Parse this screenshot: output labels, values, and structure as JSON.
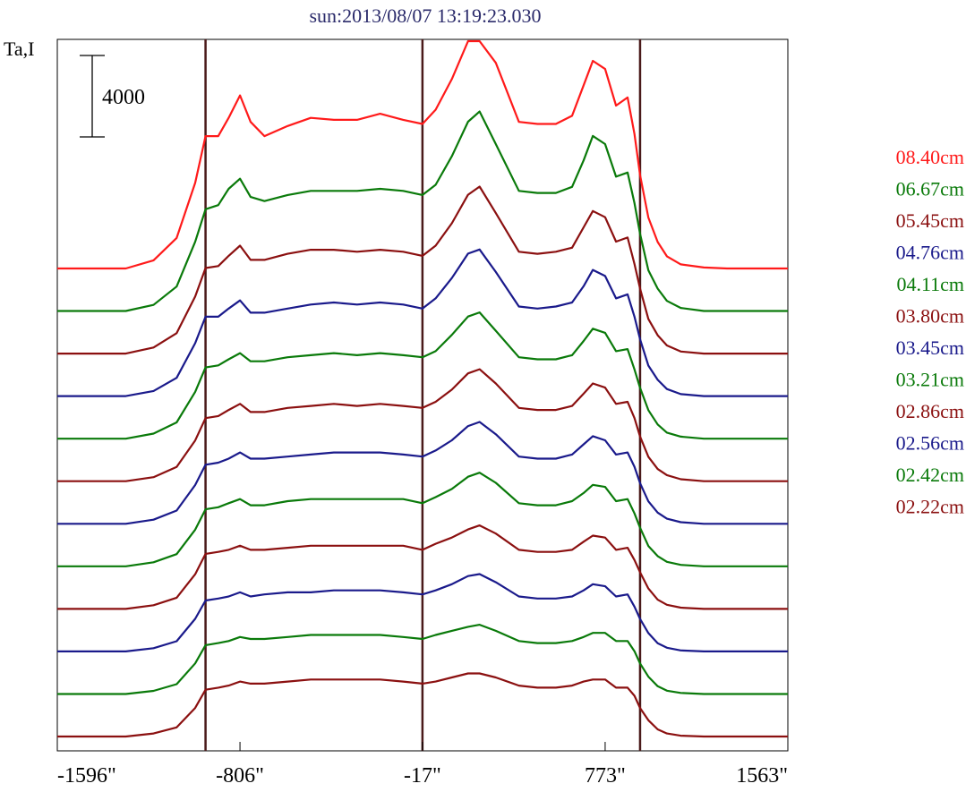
{
  "chart_data": {
    "type": "line",
    "title": "sun:2013/08/07 13:19:23.030",
    "ylabel": "Ta,I",
    "scale_bar_label": "4000",
    "scale_bar_value": 4000,
    "xlim": [
      -1596,
      1563
    ],
    "x_ticks": [
      {
        "value": -1596,
        "label": "-1596\""
      },
      {
        "value": -806,
        "label": "-806\""
      },
      {
        "value": -17,
        "label": "-17\""
      },
      {
        "value": 773,
        "label": "773\""
      },
      {
        "value": 1563,
        "label": "1563\""
      }
    ],
    "vertical_lines": [
      -955,
      -17,
      924
    ],
    "grid": false,
    "legend_position": "right",
    "x_sample": [
      -1596,
      -1460,
      -1300,
      -1180,
      -1080,
      -1000,
      -955,
      -900,
      -855,
      -806,
      -760,
      -700,
      -600,
      -500,
      -400,
      -300,
      -200,
      -100,
      -17,
      40,
      110,
      180,
      230,
      300,
      400,
      480,
      560,
      630,
      680,
      720,
      773,
      820,
      870,
      900,
      924,
      960,
      1000,
      1040,
      1100,
      1200,
      1300,
      1400,
      1500,
      1563
    ],
    "series": [
      {
        "name": "08.40cm",
        "color": "#ff1a1a",
        "values": [
          0,
          0,
          0,
          400,
          1500,
          4200,
          6500,
          6500,
          7400,
          8500,
          7200,
          6500,
          7000,
          7400,
          7300,
          7300,
          7600,
          7300,
          7100,
          7800,
          9300,
          11400,
          12000,
          10100,
          7200,
          7100,
          7100,
          7500,
          9000,
          10200,
          9800,
          8000,
          8400,
          6600,
          4600,
          2500,
          1300,
          600,
          200,
          50,
          0,
          0,
          0,
          0
        ]
      },
      {
        "name": "06.67cm",
        "color": "#0a7a0a",
        "values": [
          0,
          0,
          0,
          300,
          1200,
          3400,
          5000,
          5200,
          6000,
          6500,
          5600,
          5400,
          5700,
          5900,
          5900,
          5900,
          6000,
          5900,
          5700,
          6200,
          7600,
          9300,
          9800,
          8200,
          5900,
          5800,
          5800,
          6100,
          7400,
          8600,
          8200,
          6600,
          6800,
          5300,
          3800,
          2000,
          1100,
          500,
          150,
          0,
          0,
          0,
          0,
          0
        ]
      },
      {
        "name": "05.45cm",
        "color": "#8b1010",
        "values": [
          0,
          0,
          0,
          300,
          1000,
          2800,
          4200,
          4300,
          4800,
          5300,
          4600,
          4600,
          4900,
          5100,
          5100,
          5000,
          5100,
          5000,
          4800,
          5300,
          6400,
          7800,
          8200,
          6900,
          5000,
          4900,
          5000,
          5200,
          6200,
          7000,
          6700,
          5500,
          5700,
          4400,
          3200,
          1700,
          900,
          400,
          100,
          0,
          0,
          0,
          0,
          0
        ]
      },
      {
        "name": "04.76cm",
        "color": "#1a1a8b",
        "values": [
          0,
          0,
          0,
          250,
          900,
          2600,
          3900,
          3900,
          4300,
          4700,
          4100,
          4100,
          4300,
          4500,
          4600,
          4500,
          4600,
          4500,
          4300,
          4800,
          5800,
          7000,
          7200,
          6100,
          4400,
          4300,
          4400,
          4600,
          5400,
          6200,
          5900,
          4800,
          5000,
          3900,
          2800,
          1500,
          800,
          350,
          100,
          0,
          0,
          0,
          0,
          0
        ]
      },
      {
        "name": "04.11cm",
        "color": "#0a7a0a",
        "values": [
          0,
          0,
          0,
          250,
          800,
          2300,
          3500,
          3600,
          3900,
          4200,
          3800,
          3800,
          4000,
          4100,
          4200,
          4100,
          4200,
          4100,
          4000,
          4300,
          5100,
          6000,
          6200,
          5300,
          4000,
          3900,
          3900,
          4100,
          4800,
          5400,
          5200,
          4300,
          4400,
          3400,
          2500,
          1400,
          700,
          300,
          100,
          0,
          0,
          0,
          0,
          0
        ]
      },
      {
        "name": "03.80cm",
        "color": "#8b1010",
        "values": [
          0,
          0,
          0,
          200,
          700,
          2000,
          3100,
          3200,
          3500,
          3800,
          3400,
          3400,
          3600,
          3700,
          3800,
          3700,
          3800,
          3700,
          3600,
          3900,
          4500,
          5300,
          5500,
          4800,
          3600,
          3500,
          3500,
          3700,
          4300,
          4800,
          4600,
          3800,
          3900,
          3100,
          2200,
          1200,
          600,
          300,
          100,
          0,
          0,
          0,
          0,
          0
        ]
      },
      {
        "name": "03.45cm",
        "color": "#1a1a8b",
        "values": [
          0,
          0,
          0,
          200,
          650,
          1900,
          2900,
          3000,
          3200,
          3500,
          3200,
          3200,
          3300,
          3400,
          3500,
          3500,
          3500,
          3400,
          3300,
          3600,
          4100,
          4800,
          5000,
          4400,
          3300,
          3200,
          3200,
          3400,
          3900,
          4300,
          4100,
          3400,
          3500,
          2800,
          2000,
          1100,
          550,
          250,
          80,
          0,
          0,
          0,
          0,
          0
        ]
      },
      {
        "name": "03.21cm",
        "color": "#0a7a0a",
        "values": [
          0,
          0,
          0,
          200,
          600,
          1800,
          2800,
          2900,
          3100,
          3300,
          3000,
          3000,
          3200,
          3300,
          3300,
          3300,
          3300,
          3300,
          3100,
          3400,
          3800,
          4400,
          4600,
          4100,
          3100,
          3000,
          3000,
          3200,
          3600,
          4000,
          3900,
          3200,
          3300,
          2600,
          1900,
          1000,
          500,
          220,
          70,
          0,
          0,
          0,
          0,
          0
        ]
      },
      {
        "name": "02.86cm",
        "color": "#8b1010",
        "values": [
          0,
          0,
          0,
          180,
          550,
          1700,
          2700,
          2800,
          2900,
          3100,
          2900,
          2900,
          3000,
          3100,
          3100,
          3100,
          3100,
          3100,
          2900,
          3200,
          3500,
          3900,
          4100,
          3700,
          2900,
          2800,
          2800,
          2900,
          3300,
          3600,
          3500,
          2900,
          3000,
          2400,
          1800,
          1000,
          450,
          200,
          60,
          0,
          0,
          0,
          0,
          0
        ]
      },
      {
        "name": "02.56cm",
        "color": "#1a1a8b",
        "values": [
          0,
          0,
          0,
          160,
          500,
          1600,
          2500,
          2600,
          2700,
          2900,
          2700,
          2800,
          2900,
          2900,
          3000,
          3000,
          3000,
          2900,
          2800,
          3000,
          3300,
          3700,
          3800,
          3400,
          2700,
          2600,
          2600,
          2700,
          3000,
          3300,
          3200,
          2700,
          2800,
          2200,
          1600,
          900,
          400,
          180,
          50,
          0,
          0,
          0,
          0,
          0
        ]
      },
      {
        "name": "02.42cm",
        "color": "#0a7a0a",
        "values": [
          0,
          0,
          0,
          150,
          480,
          1500,
          2400,
          2500,
          2600,
          2800,
          2700,
          2700,
          2800,
          2900,
          2900,
          2900,
          2900,
          2800,
          2700,
          2900,
          3100,
          3300,
          3400,
          3100,
          2600,
          2500,
          2500,
          2600,
          2800,
          3000,
          3000,
          2600,
          2600,
          2100,
          1500,
          850,
          380,
          160,
          50,
          0,
          0,
          0,
          0,
          0
        ]
      },
      {
        "name": "02.22cm",
        "color": "#8b1010",
        "values": [
          0,
          0,
          0,
          150,
          450,
          1400,
          2300,
          2400,
          2500,
          2700,
          2600,
          2600,
          2700,
          2800,
          2800,
          2800,
          2800,
          2700,
          2600,
          2700,
          2900,
          3100,
          3100,
          2900,
          2500,
          2400,
          2400,
          2500,
          2700,
          2800,
          2800,
          2400,
          2400,
          2000,
          1400,
          800,
          350,
          150,
          40,
          0,
          0,
          0,
          0,
          0
        ]
      }
    ]
  }
}
